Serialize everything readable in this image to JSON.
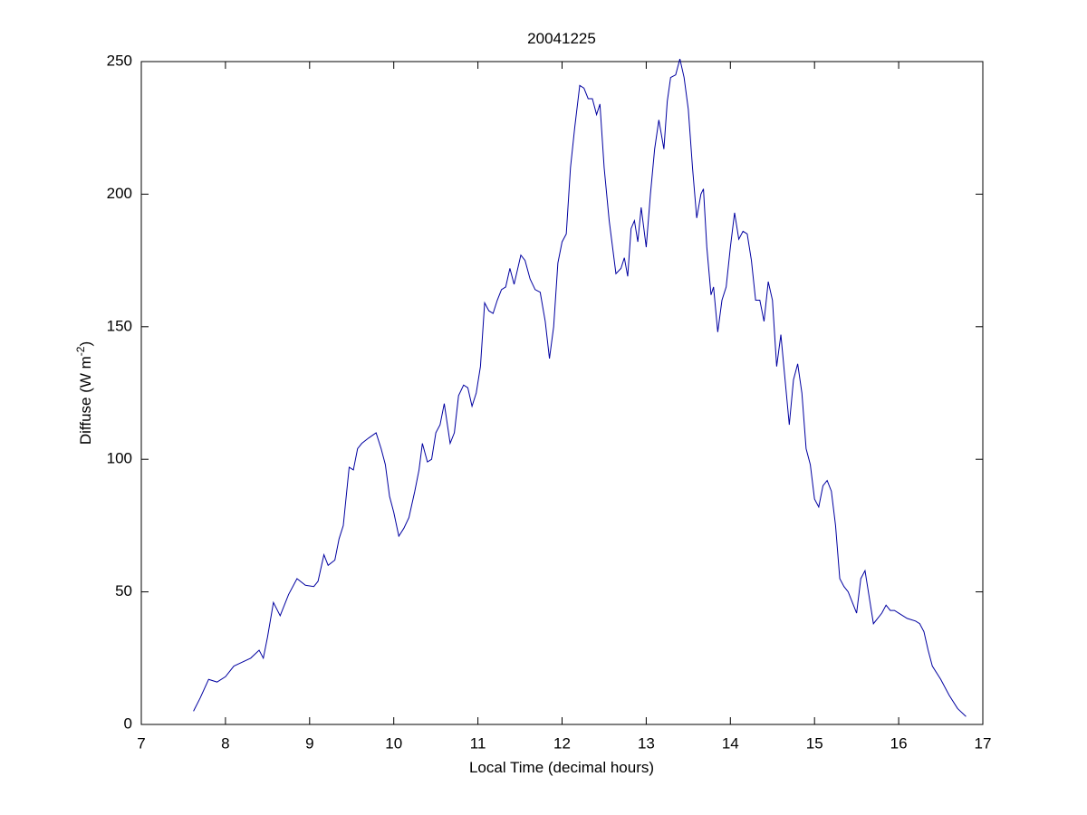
{
  "chart_data": {
    "type": "line",
    "title": "20041225",
    "x_label": "Local Time (decimal hours)",
    "y_label": [
      "Diffuse (W m",
      "-2",
      ")"
    ],
    "xlim": [
      7,
      17
    ],
    "xticks": [
      7,
      8,
      9,
      10,
      11,
      12,
      13,
      14,
      15,
      16,
      17
    ],
    "ylim": [
      0,
      250
    ],
    "yticks": [
      0,
      50,
      100,
      150,
      200,
      250
    ],
    "grid": false,
    "x": [
      7.62,
      7.7,
      7.8,
      7.9,
      8.0,
      8.1,
      8.2,
      8.3,
      8.4,
      8.45,
      8.5,
      8.57,
      8.65,
      8.75,
      8.85,
      8.95,
      9.05,
      9.1,
      9.17,
      9.22,
      9.3,
      9.35,
      9.4,
      9.47,
      9.52,
      9.57,
      9.62,
      9.7,
      9.79,
      9.85,
      9.9,
      9.95,
      10.0,
      10.06,
      10.12,
      10.18,
      10.25,
      10.3,
      10.34,
      10.4,
      10.45,
      10.5,
      10.55,
      10.6,
      10.67,
      10.72,
      10.77,
      10.83,
      10.88,
      10.93,
      10.98,
      11.03,
      11.08,
      11.13,
      11.18,
      11.23,
      11.28,
      11.33,
      11.38,
      11.43,
      11.51,
      11.56,
      11.62,
      11.68,
      11.74,
      11.8,
      11.85,
      11.9,
      11.95,
      12.0,
      12.05,
      12.1,
      12.15,
      12.21,
      12.26,
      12.31,
      12.36,
      12.41,
      12.45,
      12.5,
      12.56,
      12.64,
      12.7,
      12.74,
      12.78,
      12.82,
      12.86,
      12.9,
      12.94,
      13.0,
      13.05,
      13.1,
      13.15,
      13.21,
      13.25,
      13.29,
      13.35,
      13.4,
      13.45,
      13.5,
      13.55,
      13.6,
      13.65,
      13.68,
      13.72,
      13.77,
      13.8,
      13.85,
      13.9,
      13.95,
      14.0,
      14.05,
      14.1,
      14.15,
      14.2,
      14.25,
      14.3,
      14.35,
      14.4,
      14.45,
      14.5,
      14.55,
      14.6,
      14.65,
      14.7,
      14.75,
      14.8,
      14.85,
      14.9,
      14.95,
      15.0,
      15.05,
      15.1,
      15.15,
      15.2,
      15.25,
      15.3,
      15.35,
      15.4,
      15.45,
      15.5,
      15.55,
      15.6,
      15.65,
      15.7,
      15.75,
      15.8,
      15.85,
      15.9,
      15.95,
      16.0,
      16.1,
      16.2,
      16.25,
      16.3,
      16.35,
      16.4,
      16.5,
      16.6,
      16.7,
      16.8
    ],
    "series": [
      {
        "name": "Diffuse",
        "color": "#0000a0",
        "values": [
          5,
          10,
          17,
          16,
          18,
          22,
          23.5,
          25,
          28,
          25,
          33,
          46,
          41,
          49,
          55,
          52.5,
          52,
          54,
          64,
          60,
          62,
          70,
          75,
          97,
          96,
          104,
          106,
          108,
          110,
          104,
          98,
          86,
          80,
          71,
          74,
          78,
          88,
          96,
          106,
          99,
          100,
          110,
          113,
          121,
          106,
          110,
          124,
          128,
          127,
          120,
          125,
          135,
          159,
          156,
          155,
          160,
          164,
          165,
          172,
          166,
          177,
          175,
          168,
          164,
          163,
          152,
          138,
          150,
          174,
          182,
          185,
          210,
          225,
          241,
          240,
          236,
          236,
          230,
          234,
          210,
          190,
          170,
          172,
          176,
          169,
          187,
          190,
          182,
          195,
          180,
          200,
          217,
          228,
          217,
          235,
          244,
          245,
          251,
          244,
          232,
          210,
          191,
          200,
          202,
          180,
          162,
          165,
          148,
          160,
          165,
          180,
          193,
          183,
          186,
          185,
          175,
          160,
          160,
          152,
          167,
          160,
          135,
          147,
          130,
          113,
          130,
          136,
          125,
          104,
          98,
          85,
          82,
          90,
          92,
          88,
          75,
          55,
          52,
          50,
          46,
          42,
          55,
          58,
          48,
          38,
          40,
          42,
          45,
          43,
          43,
          42,
          40,
          39,
          38,
          35,
          28,
          22,
          17,
          11,
          6,
          3
        ]
      }
    ]
  }
}
